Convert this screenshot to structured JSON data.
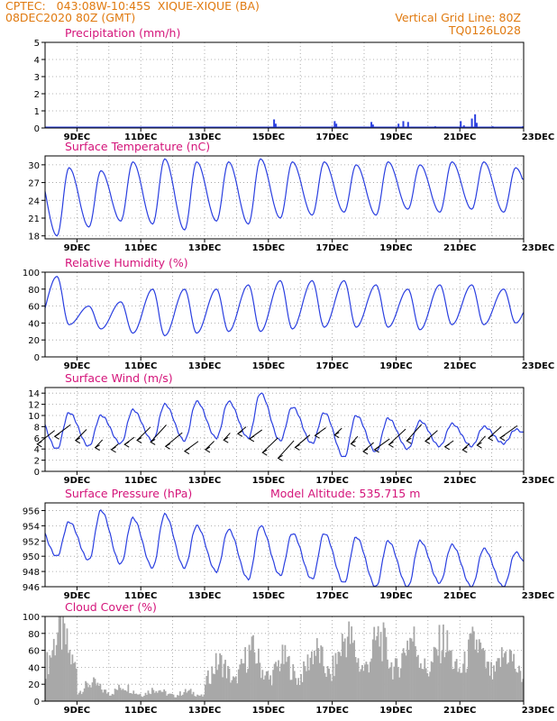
{
  "header": {
    "left_line1": "CPTEC:   043:08W-10:45S  XIQUE-XIQUE (BA)",
    "left_line2": "08DEC2020 80Z (GMT)",
    "right_line1": "Vertical Grid Line: 80Z",
    "right_line2": "TQ0126L028"
  },
  "colors": {
    "header": "#e07a10",
    "title": "#d4147a",
    "series": "#2a3fe0",
    "cloud": "#a8a8a8",
    "arrow": "#000000"
  },
  "x_axis": {
    "ticks": [
      "9DEC",
      "11DEC",
      "13DEC",
      "15DEC",
      "17DEC",
      "19DEC",
      "21DEC",
      "23DEC"
    ],
    "range_days": [
      8.0,
      23.0
    ]
  },
  "chart_data": [
    {
      "id": "precip",
      "type": "bar",
      "title": "Precipitation (mm/h)",
      "ylim": [
        0,
        5
      ],
      "yticks": [
        0,
        1,
        2,
        3,
        4,
        5
      ],
      "events": [
        {
          "day": 15.15,
          "value": 0.5
        },
        {
          "day": 15.2,
          "value": 0.25
        },
        {
          "day": 17.05,
          "value": 0.4
        },
        {
          "day": 17.1,
          "value": 0.25
        },
        {
          "day": 18.2,
          "value": 0.35
        },
        {
          "day": 18.25,
          "value": 0.2
        },
        {
          "day": 19.05,
          "value": 0.25
        },
        {
          "day": 19.2,
          "value": 0.4
        },
        {
          "day": 19.35,
          "value": 0.35
        },
        {
          "day": 20.2,
          "value": 0.1
        },
        {
          "day": 21.0,
          "value": 0.4
        },
        {
          "day": 21.1,
          "value": 0.15
        },
        {
          "day": 21.35,
          "value": 0.55
        },
        {
          "day": 21.45,
          "value": 0.8
        },
        {
          "day": 21.5,
          "value": 0.3
        },
        {
          "day": 22.0,
          "value": 0.1
        },
        {
          "day": 22.95,
          "value": 0.1
        }
      ]
    },
    {
      "id": "temp",
      "type": "line",
      "title": "Surface Temperature (nC)",
      "ylim": [
        17.5,
        31.5
      ],
      "yticks": [
        18,
        21,
        24,
        27,
        30
      ],
      "max": [
        29.5,
        29.0,
        30.5,
        31.0,
        30.5,
        30.5,
        31.0,
        30.5,
        30.5,
        30.0,
        30.5,
        30.0,
        30.5,
        30.5,
        29.5
      ],
      "min": [
        18.0,
        19.5,
        20.5,
        20.0,
        19.0,
        20.5,
        20.0,
        21.0,
        21.5,
        22.0,
        21.5,
        22.5,
        22.0,
        22.5,
        22.0
      ]
    },
    {
      "id": "rh",
      "type": "line",
      "title": "Relative Humidity (%)",
      "ylim": [
        0,
        100
      ],
      "yticks": [
        0,
        20,
        40,
        60,
        80,
        100
      ],
      "max": [
        95,
        60,
        65,
        80,
        80,
        80,
        85,
        90,
        90,
        90,
        85,
        80,
        85,
        85,
        80
      ],
      "min": [
        38,
        33,
        28,
        25,
        28,
        30,
        30,
        33,
        35,
        35,
        35,
        32,
        38,
        38,
        40
      ]
    },
    {
      "id": "wind",
      "type": "line",
      "title": "Surface Wind (m/s)",
      "ylim": [
        0,
        15
      ],
      "yticks": [
        0,
        2,
        4,
        6,
        8,
        10,
        12,
        14
      ],
      "max": [
        10.5,
        10.0,
        11.0,
        12.0,
        12.5,
        12.5,
        14.0,
        11.5,
        10.5,
        10.0,
        9.5,
        9.0,
        8.5,
        8.0,
        7.5
      ],
      "min": [
        4.0,
        4.5,
        5.0,
        5.5,
        5.5,
        6.0,
        6.0,
        5.5,
        5.0,
        2.5,
        3.5,
        4.0,
        4.5,
        4.5,
        5.0
      ]
    },
    {
      "id": "press",
      "type": "line",
      "title": "Surface Pressure (hPa)",
      "annotation": "Model Altitude: 535.715 m",
      "ylim": [
        946,
        957
      ],
      "yticks": [
        946,
        948,
        950,
        952,
        954,
        956
      ],
      "max": [
        954.5,
        956.0,
        955.0,
        955.5,
        954.0,
        953.5,
        954.0,
        953.0,
        953.0,
        952.5,
        952.0,
        952.0,
        951.5,
        951.0,
        950.5
      ],
      "min": [
        950.0,
        949.5,
        949.0,
        948.5,
        948.5,
        948.0,
        947.0,
        947.5,
        947.0,
        946.5,
        946.0,
        946.0,
        946.5,
        946.0,
        946.0
      ]
    },
    {
      "id": "cloud",
      "type": "bar",
      "title": "Cloud Cover (%)",
      "ylim": [
        0,
        100
      ],
      "yticks": [
        0,
        20,
        40,
        60,
        80,
        100
      ],
      "daily": [
        85,
        22,
        18,
        15,
        12,
        48,
        62,
        52,
        62,
        80,
        78,
        78,
        74,
        72,
        60
      ]
    }
  ]
}
